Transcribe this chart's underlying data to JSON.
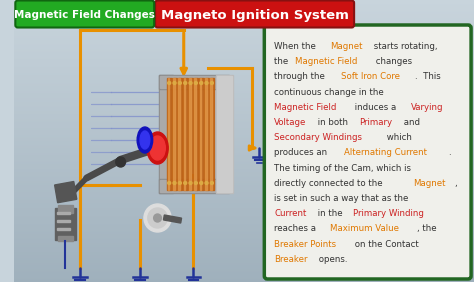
{
  "title": "Magneto Ignition System",
  "title_bg": "#cc1111",
  "title_fg": "#ffffff",
  "label_magnetic": "Magnetic Field Changes",
  "label_magnetic_bg": "#22aa22",
  "label_magnetic_fg": "#ffffff",
  "bg_top": "#c8d4dc",
  "bg_bottom": "#9fb0bc",
  "text_box_bg": "#f0f0eb",
  "text_box_border": "#226622",
  "wire_color": "#e89000",
  "coil_color": "#c06010",
  "iron_color": "#9a9a9a",
  "iron_dark": "#707070",
  "magnet_red": "#cc1111",
  "magnet_blue": "#1111bb",
  "ground_color": "#223399",
  "field_line_color": "#8090cc",
  "paragraphs": [
    [
      [
        "When the ",
        "#333333"
      ],
      [
        "Magnet",
        "#e07800"
      ],
      [
        " starts rotating,",
        "#333333"
      ]
    ],
    [
      [
        "the ",
        "#333333"
      ],
      [
        "Magnetic Field",
        "#e07800"
      ],
      [
        " changes",
        "#333333"
      ]
    ],
    [
      [
        "through the ",
        "#333333"
      ],
      [
        "Soft Iron Core",
        "#e07800"
      ],
      [
        ".  This",
        "#333333"
      ]
    ],
    [
      [
        "continuous change in the",
        "#333333"
      ]
    ],
    [
      [
        "Magnetic Field",
        "#cc2222"
      ],
      [
        " induces a ",
        "#333333"
      ],
      [
        "Varying",
        "#cc2222"
      ]
    ],
    [
      [
        "Voltage",
        "#cc2222"
      ],
      [
        " in both ",
        "#333333"
      ],
      [
        "Primary",
        "#cc2222"
      ],
      [
        " and",
        "#333333"
      ]
    ],
    [
      [
        "Secondary Windings",
        "#cc2222"
      ],
      [
        " which",
        "#333333"
      ]
    ],
    [
      [
        "produces an ",
        "#333333"
      ],
      [
        "Alternating Current",
        "#e07800"
      ],
      [
        ".",
        "#333333"
      ]
    ],
    [
      [
        "The timing of the Cam, which is",
        "#333333"
      ]
    ],
    [
      [
        "directly connected to the ",
        "#333333"
      ],
      [
        "Magnet",
        "#e07800"
      ],
      [
        ",",
        "#333333"
      ]
    ],
    [
      [
        "is set in such a way that as the",
        "#333333"
      ]
    ],
    [
      [
        "Current",
        "#cc2222"
      ],
      [
        " in the ",
        "#333333"
      ],
      [
        "Primary Winding",
        "#cc2222"
      ]
    ],
    [
      [
        "reaches a ",
        "#333333"
      ],
      [
        "Maximum Value",
        "#e07800"
      ],
      [
        ", the",
        "#333333"
      ]
    ],
    [
      [
        "Breaker Points",
        "#e07800"
      ],
      [
        " on the Contact",
        "#333333"
      ]
    ],
    [
      [
        "Breaker",
        "#e07800"
      ],
      [
        " opens.",
        "#333333"
      ]
    ]
  ]
}
